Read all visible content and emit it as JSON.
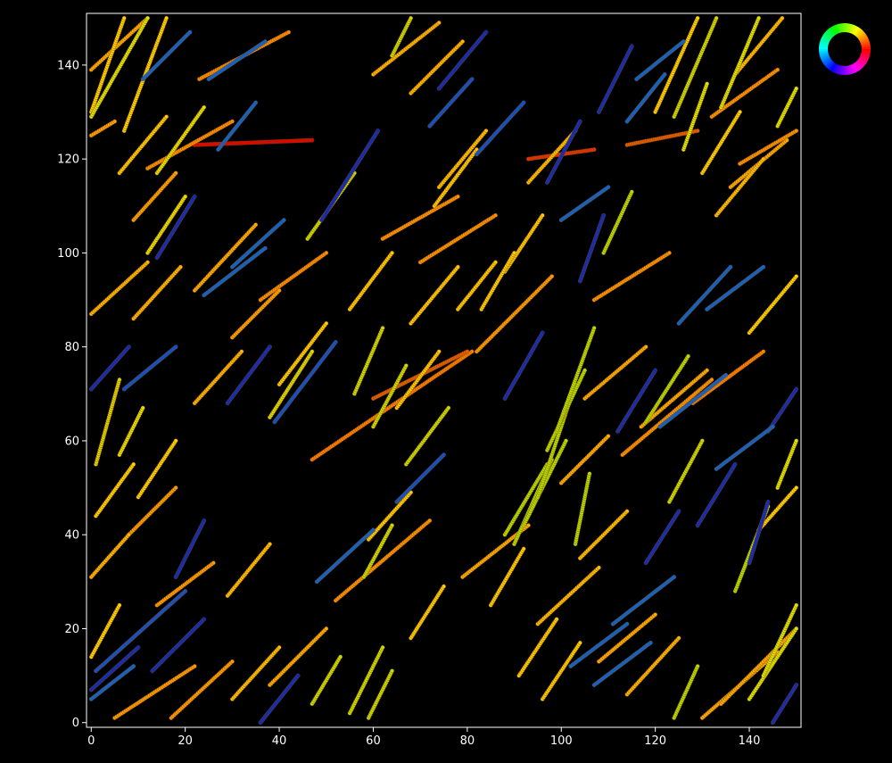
{
  "chart_data": {
    "type": "scatter",
    "title": "",
    "xlabel": "",
    "ylabel": "",
    "xlim": [
      -1,
      151
    ],
    "ylim": [
      -1,
      151
    ],
    "grid": false,
    "background": "#000000",
    "axes_color": "#ffffff",
    "x_ticks": [
      {
        "value": 0,
        "label": "0"
      },
      {
        "value": 20,
        "label": "20"
      },
      {
        "value": 40,
        "label": "40"
      },
      {
        "value": 60,
        "label": "60"
      },
      {
        "value": 80,
        "label": "80"
      },
      {
        "value": 100,
        "label": "100"
      },
      {
        "value": 120,
        "label": "120"
      },
      {
        "value": 140,
        "label": "140"
      }
    ],
    "y_ticks": [
      {
        "value": 0,
        "label": "0"
      },
      {
        "value": 20,
        "label": "20"
      },
      {
        "value": 40,
        "label": "40"
      },
      {
        "value": 60,
        "label": "60"
      },
      {
        "value": 80,
        "label": "80"
      },
      {
        "value": 100,
        "label": "100"
      },
      {
        "value": 120,
        "label": "120"
      },
      {
        "value": 140,
        "label": "140"
      }
    ],
    "legend": {
      "kind": "color-wheel",
      "placement": "top-right outside plot"
    },
    "color_encoding": "orientation angle of each track (hue wheel)",
    "tracks": [
      {
        "x0": 22,
        "y0": 123,
        "x1": 47,
        "y1": 124,
        "color": "#e60000"
      },
      {
        "x0": 93,
        "y0": 120,
        "x1": 107,
        "y1": 122,
        "color": "#e63000"
      },
      {
        "x0": 114,
        "y0": 123,
        "x1": 129,
        "y1": 126,
        "color": "#e65a00"
      },
      {
        "x0": 47,
        "y0": 56,
        "x1": 81,
        "y1": 79,
        "color": "#ff7a00"
      },
      {
        "x0": 60,
        "y0": 69,
        "x1": 80,
        "y1": 79,
        "color": "#e65a00"
      },
      {
        "x0": 12,
        "y0": 118,
        "x1": 30,
        "y1": 128,
        "color": "#ff8c00"
      },
      {
        "x0": 23,
        "y0": 137,
        "x1": 42,
        "y1": 147,
        "color": "#ff8c00"
      },
      {
        "x0": 36,
        "y0": 90,
        "x1": 50,
        "y1": 100,
        "color": "#ff8c00"
      },
      {
        "x0": 62,
        "y0": 103,
        "x1": 78,
        "y1": 112,
        "color": "#ff9000"
      },
      {
        "x0": 70,
        "y0": 98,
        "x1": 86,
        "y1": 108,
        "color": "#ff9000"
      },
      {
        "x0": 107,
        "y0": 90,
        "x1": 123,
        "y1": 100,
        "color": "#ff9000"
      },
      {
        "x0": 113,
        "y0": 57,
        "x1": 132,
        "y1": 73,
        "color": "#ff9000"
      },
      {
        "x0": 128,
        "y0": 68,
        "x1": 143,
        "y1": 79,
        "color": "#ff8000"
      },
      {
        "x0": 132,
        "y0": 129,
        "x1": 146,
        "y1": 139,
        "color": "#ff9000"
      },
      {
        "x0": 138,
        "y0": 119,
        "x1": 150,
        "y1": 126,
        "color": "#ff9000"
      },
      {
        "x0": 52,
        "y0": 26,
        "x1": 72,
        "y1": 43,
        "color": "#ff9000"
      },
      {
        "x0": 82,
        "y0": 79,
        "x1": 98,
        "y1": 95,
        "color": "#ff9a00"
      },
      {
        "x0": 14,
        "y0": 25,
        "x1": 26,
        "y1": 34,
        "color": "#ff9a00"
      },
      {
        "x0": 8,
        "y0": 40,
        "x1": 18,
        "y1": 50,
        "color": "#ff9a00"
      },
      {
        "x0": 5,
        "y0": 1,
        "x1": 22,
        "y1": 12,
        "color": "#ff9a00"
      },
      {
        "x0": 17,
        "y0": 1,
        "x1": 30,
        "y1": 13,
        "color": "#ff9a00"
      },
      {
        "x0": 30,
        "y0": 82,
        "x1": 40,
        "y1": 92,
        "color": "#ffa000"
      },
      {
        "x0": 9,
        "y0": 107,
        "x1": 18,
        "y1": 117,
        "color": "#ffa000"
      },
      {
        "x0": 0,
        "y0": 125,
        "x1": 5,
        "y1": 128,
        "color": "#ffa000"
      },
      {
        "x0": 0,
        "y0": 139,
        "x1": 12,
        "y1": 150,
        "color": "#ffa800"
      },
      {
        "x0": 22,
        "y0": 92,
        "x1": 35,
        "y1": 106,
        "color": "#ffaa00"
      },
      {
        "x0": 38,
        "y0": 8,
        "x1": 50,
        "y1": 20,
        "color": "#ffaa00"
      },
      {
        "x0": 79,
        "y0": 31,
        "x1": 93,
        "y1": 42,
        "color": "#ffaa00"
      },
      {
        "x0": 105,
        "y0": 69,
        "x1": 118,
        "y1": 80,
        "color": "#ffaa00"
      },
      {
        "x0": 117,
        "y0": 63,
        "x1": 131,
        "y1": 75,
        "color": "#ffaa00"
      },
      {
        "x0": 136,
        "y0": 114,
        "x1": 148,
        "y1": 124,
        "color": "#ffaa00"
      },
      {
        "x0": 108,
        "y0": 13,
        "x1": 120,
        "y1": 23,
        "color": "#ffaa00"
      },
      {
        "x0": 100,
        "y0": 51,
        "x1": 110,
        "y1": 61,
        "color": "#ffaa00"
      },
      {
        "x0": 130,
        "y0": 1,
        "x1": 146,
        "y1": 15,
        "color": "#ffaa00"
      },
      {
        "x0": 134,
        "y0": 4,
        "x1": 150,
        "y1": 20,
        "color": "#ffaa00"
      },
      {
        "x0": 0,
        "y0": 31,
        "x1": 8,
        "y1": 40,
        "color": "#ffb400"
      },
      {
        "x0": 0,
        "y0": 87,
        "x1": 12,
        "y1": 98,
        "color": "#ffb400"
      },
      {
        "x0": 9,
        "y0": 86,
        "x1": 19,
        "y1": 97,
        "color": "#ffb400"
      },
      {
        "x0": 22,
        "y0": 68,
        "x1": 32,
        "y1": 79,
        "color": "#ffb400"
      },
      {
        "x0": 68,
        "y0": 134,
        "x1": 79,
        "y1": 145,
        "color": "#ffb400"
      },
      {
        "x0": 60,
        "y0": 138,
        "x1": 74,
        "y1": 149,
        "color": "#ffb400"
      },
      {
        "x0": 114,
        "y0": 6,
        "x1": 125,
        "y1": 18,
        "color": "#ffb400"
      },
      {
        "x0": 95,
        "y0": 21,
        "x1": 108,
        "y1": 33,
        "color": "#ffbb00"
      },
      {
        "x0": 29,
        "y0": 27,
        "x1": 38,
        "y1": 38,
        "color": "#ffbe00"
      },
      {
        "x0": 30,
        "y0": 5,
        "x1": 40,
        "y1": 16,
        "color": "#ffbe00"
      },
      {
        "x0": 74,
        "y0": 114,
        "x1": 84,
        "y1": 126,
        "color": "#ffbe00"
      },
      {
        "x0": 93,
        "y0": 115,
        "x1": 103,
        "y1": 126,
        "color": "#ffbe00"
      },
      {
        "x0": 104,
        "y0": 35,
        "x1": 114,
        "y1": 45,
        "color": "#ffbe00"
      },
      {
        "x0": 133,
        "y0": 108,
        "x1": 143,
        "y1": 120,
        "color": "#ffbe00"
      },
      {
        "x0": 137,
        "y0": 138,
        "x1": 147,
        "y1": 150,
        "color": "#ffbe00"
      },
      {
        "x0": 0,
        "y0": 130,
        "x1": 7,
        "y1": 150,
        "color": "#ffd000"
      },
      {
        "x0": 6,
        "y0": 117,
        "x1": 16,
        "y1": 129,
        "color": "#ffc800"
      },
      {
        "x0": 55,
        "y0": 88,
        "x1": 64,
        "y1": 100,
        "color": "#ffc800"
      },
      {
        "x0": 68,
        "y0": 85,
        "x1": 78,
        "y1": 97,
        "color": "#ffc800"
      },
      {
        "x0": 73,
        "y0": 110,
        "x1": 82,
        "y1": 122,
        "color": "#ffc800"
      },
      {
        "x0": 78,
        "y0": 88,
        "x1": 86,
        "y1": 98,
        "color": "#ffc800"
      },
      {
        "x0": 88,
        "y0": 96,
        "x1": 96,
        "y1": 108,
        "color": "#ffc800"
      },
      {
        "x0": 65,
        "y0": 67,
        "x1": 74,
        "y1": 79,
        "color": "#ffc800"
      },
      {
        "x0": 83,
        "y0": 88,
        "x1": 90,
        "y1": 100,
        "color": "#ffcc00"
      },
      {
        "x0": 40,
        "y0": 72,
        "x1": 50,
        "y1": 85,
        "color": "#ffcc00"
      },
      {
        "x0": 59,
        "y0": 39,
        "x1": 68,
        "y1": 49,
        "color": "#ffcc00"
      },
      {
        "x0": 85,
        "y0": 25,
        "x1": 92,
        "y1": 37,
        "color": "#ffcc00"
      },
      {
        "x0": 91,
        "y0": 10,
        "x1": 99,
        "y1": 22,
        "color": "#ffcc00"
      },
      {
        "x0": 96,
        "y0": 5,
        "x1": 104,
        "y1": 17,
        "color": "#ffcc00"
      },
      {
        "x0": 68,
        "y0": 18,
        "x1": 75,
        "y1": 29,
        "color": "#ffcc00"
      },
      {
        "x0": 10,
        "y0": 48,
        "x1": 18,
        "y1": 60,
        "color": "#ffd200"
      },
      {
        "x0": 1,
        "y0": 44,
        "x1": 9,
        "y1": 55,
        "color": "#ffd200"
      },
      {
        "x0": 0,
        "y0": 14,
        "x1": 6,
        "y1": 25,
        "color": "#ffd200"
      },
      {
        "x0": 7,
        "y0": 126,
        "x1": 16,
        "y1": 150,
        "color": "#ffd200"
      },
      {
        "x0": 120,
        "y0": 130,
        "x1": 129,
        "y1": 150,
        "color": "#ffd200"
      },
      {
        "x0": 130,
        "y0": 117,
        "x1": 138,
        "y1": 130,
        "color": "#ffd200"
      },
      {
        "x0": 140,
        "y0": 83,
        "x1": 150,
        "y1": 95,
        "color": "#ffd200"
      },
      {
        "x0": 142,
        "y0": 41,
        "x1": 150,
        "y1": 50,
        "color": "#ffd200"
      },
      {
        "x0": 1,
        "y0": 55,
        "x1": 6,
        "y1": 73,
        "color": "#dcd200"
      },
      {
        "x0": 6,
        "y0": 57,
        "x1": 11,
        "y1": 67,
        "color": "#e6e000"
      },
      {
        "x0": 12,
        "y0": 100,
        "x1": 20,
        "y1": 112,
        "color": "#e6e000"
      },
      {
        "x0": 14,
        "y0": 117,
        "x1": 24,
        "y1": 131,
        "color": "#e6e000"
      },
      {
        "x0": 46,
        "y0": 103,
        "x1": 56,
        "y1": 117,
        "color": "#c8dc00"
      },
      {
        "x0": 38,
        "y0": 65,
        "x1": 47,
        "y1": 79,
        "color": "#dcdc00"
      },
      {
        "x0": 56,
        "y0": 70,
        "x1": 62,
        "y1": 84,
        "color": "#c8dc00"
      },
      {
        "x0": 60,
        "y0": 63,
        "x1": 67,
        "y1": 76,
        "color": "#c8dc00"
      },
      {
        "x0": 67,
        "y0": 55,
        "x1": 76,
        "y1": 67,
        "color": "#c8dc00"
      },
      {
        "x0": 58,
        "y0": 31,
        "x1": 64,
        "y1": 42,
        "color": "#c8dc00"
      },
      {
        "x0": 55,
        "y0": 2,
        "x1": 62,
        "y1": 16,
        "color": "#c8dc00"
      },
      {
        "x0": 59,
        "y0": 1,
        "x1": 64,
        "y1": 11,
        "color": "#c8dc00"
      },
      {
        "x0": 47,
        "y0": 4,
        "x1": 53,
        "y1": 14,
        "color": "#c8dc00"
      },
      {
        "x0": 64,
        "y0": 142,
        "x1": 68,
        "y1": 150,
        "color": "#c8dc00"
      },
      {
        "x0": 88,
        "y0": 40,
        "x1": 97,
        "y1": 55,
        "color": "#b4dc00"
      },
      {
        "x0": 90,
        "y0": 38,
        "x1": 98,
        "y1": 56,
        "color": "#b4dc00"
      },
      {
        "x0": 92,
        "y0": 42,
        "x1": 101,
        "y1": 60,
        "color": "#b4dc00"
      },
      {
        "x0": 95,
        "y0": 48,
        "x1": 103,
        "y1": 72,
        "color": "#b4dc00"
      },
      {
        "x0": 97,
        "y0": 58,
        "x1": 105,
        "y1": 75,
        "color": "#b4dc00"
      },
      {
        "x0": 99,
        "y0": 62,
        "x1": 107,
        "y1": 84,
        "color": "#b4dc00"
      },
      {
        "x0": 103,
        "y0": 38,
        "x1": 106,
        "y1": 53,
        "color": "#b4dc00"
      },
      {
        "x0": 109,
        "y0": 100,
        "x1": 115,
        "y1": 113,
        "color": "#b4dc00"
      },
      {
        "x0": 118,
        "y0": 64,
        "x1": 127,
        "y1": 78,
        "color": "#b4dc00"
      },
      {
        "x0": 123,
        "y0": 47,
        "x1": 130,
        "y1": 60,
        "color": "#c8dc00"
      },
      {
        "x0": 137,
        "y0": 28,
        "x1": 144,
        "y1": 46,
        "color": "#b4dc00"
      },
      {
        "x0": 124,
        "y0": 1,
        "x1": 129,
        "y1": 12,
        "color": "#b4dc00"
      },
      {
        "x0": 140,
        "y0": 5,
        "x1": 150,
        "y1": 20,
        "color": "#dce600"
      },
      {
        "x0": 143,
        "y0": 10,
        "x1": 150,
        "y1": 25,
        "color": "#dce600"
      },
      {
        "x0": 124,
        "y0": 129,
        "x1": 133,
        "y1": 150,
        "color": "#c8dc00"
      },
      {
        "x0": 134,
        "y0": 131,
        "x1": 142,
        "y1": 150,
        "color": "#dce600"
      },
      {
        "x0": 146,
        "y0": 127,
        "x1": 150,
        "y1": 135,
        "color": "#dce600"
      },
      {
        "x0": 146,
        "y0": 50,
        "x1": 150,
        "y1": 60,
        "color": "#dce600"
      },
      {
        "x0": 0,
        "y0": 129,
        "x1": 12,
        "y1": 150,
        "color": "#dce600"
      },
      {
        "x0": 126,
        "y0": 122,
        "x1": 131,
        "y1": 136,
        "color": "#dce600"
      },
      {
        "x0": 0,
        "y0": 71,
        "x1": 8,
        "y1": 80,
        "color": "#0a28c8"
      },
      {
        "x0": 14,
        "y0": 99,
        "x1": 22,
        "y1": 112,
        "color": "#0a28c8"
      },
      {
        "x0": 29,
        "y0": 68,
        "x1": 38,
        "y1": 80,
        "color": "#0a28c8"
      },
      {
        "x0": 49,
        "y0": 107,
        "x1": 61,
        "y1": 126,
        "color": "#0a28c8"
      },
      {
        "x0": 74,
        "y0": 135,
        "x1": 84,
        "y1": 147,
        "color": "#0a28c8"
      },
      {
        "x0": 97,
        "y0": 115,
        "x1": 104,
        "y1": 128,
        "color": "#0a28c8"
      },
      {
        "x0": 104,
        "y0": 94,
        "x1": 109,
        "y1": 108,
        "color": "#0a28c8"
      },
      {
        "x0": 108,
        "y0": 130,
        "x1": 115,
        "y1": 144,
        "color": "#0a28c8"
      },
      {
        "x0": 88,
        "y0": 69,
        "x1": 96,
        "y1": 83,
        "color": "#0a28c8"
      },
      {
        "x0": 112,
        "y0": 62,
        "x1": 120,
        "y1": 75,
        "color": "#0a28c8"
      },
      {
        "x0": 18,
        "y0": 31,
        "x1": 24,
        "y1": 43,
        "color": "#0a28c8"
      },
      {
        "x0": 36,
        "y0": 0,
        "x1": 44,
        "y1": 10,
        "color": "#0a28c8"
      },
      {
        "x0": 118,
        "y0": 34,
        "x1": 125,
        "y1": 45,
        "color": "#0a28c8"
      },
      {
        "x0": 129,
        "y0": 42,
        "x1": 137,
        "y1": 55,
        "color": "#0a28c8"
      },
      {
        "x0": 140,
        "y0": 34,
        "x1": 144,
        "y1": 47,
        "color": "#0a28c8"
      },
      {
        "x0": 145,
        "y0": 0,
        "x1": 150,
        "y1": 8,
        "color": "#0a28c8"
      },
      {
        "x0": 0,
        "y0": 7,
        "x1": 10,
        "y1": 16,
        "color": "#0a28c8"
      },
      {
        "x0": 13,
        "y0": 11,
        "x1": 24,
        "y1": 22,
        "color": "#0a28c8"
      },
      {
        "x0": 144,
        "y0": 62,
        "x1": 150,
        "y1": 71,
        "color": "#0a28c8"
      },
      {
        "x0": 1,
        "y0": 11,
        "x1": 20,
        "y1": 28,
        "color": "#1050d8"
      },
      {
        "x0": 7,
        "y0": 71,
        "x1": 18,
        "y1": 80,
        "color": "#0a50dc"
      },
      {
        "x0": 11,
        "y0": 137,
        "x1": 21,
        "y1": 147,
        "color": "#0a64dc"
      },
      {
        "x0": 24,
        "y0": 91,
        "x1": 37,
        "y1": 101,
        "color": "#0a64dc"
      },
      {
        "x0": 30,
        "y0": 97,
        "x1": 41,
        "y1": 107,
        "color": "#0a64dc"
      },
      {
        "x0": 25,
        "y0": 137,
        "x1": 37,
        "y1": 145,
        "color": "#0a64dc"
      },
      {
        "x0": 27,
        "y0": 122,
        "x1": 35,
        "y1": 132,
        "color": "#0a64dc"
      },
      {
        "x0": 39,
        "y0": 64,
        "x1": 52,
        "y1": 81,
        "color": "#0a50dc"
      },
      {
        "x0": 48,
        "y0": 30,
        "x1": 60,
        "y1": 41,
        "color": "#0a64dc"
      },
      {
        "x0": 72,
        "y0": 127,
        "x1": 81,
        "y1": 137,
        "color": "#0a50dc"
      },
      {
        "x0": 82,
        "y0": 121,
        "x1": 92,
        "y1": 132,
        "color": "#0a50dc"
      },
      {
        "x0": 100,
        "y0": 107,
        "x1": 110,
        "y1": 114,
        "color": "#0a64dc"
      },
      {
        "x0": 114,
        "y0": 128,
        "x1": 122,
        "y1": 138,
        "color": "#0a64dc"
      },
      {
        "x0": 116,
        "y0": 137,
        "x1": 126,
        "y1": 145,
        "color": "#0a64dc"
      },
      {
        "x0": 121,
        "y0": 63,
        "x1": 135,
        "y1": 74,
        "color": "#0a64dc"
      },
      {
        "x0": 125,
        "y0": 85,
        "x1": 136,
        "y1": 97,
        "color": "#0a64dc"
      },
      {
        "x0": 131,
        "y0": 88,
        "x1": 143,
        "y1": 97,
        "color": "#0a64dc"
      },
      {
        "x0": 133,
        "y0": 54,
        "x1": 145,
        "y1": 63,
        "color": "#0a64dc"
      },
      {
        "x0": 102,
        "y0": 12,
        "x1": 114,
        "y1": 21,
        "color": "#0a64dc"
      },
      {
        "x0": 107,
        "y0": 8,
        "x1": 119,
        "y1": 17,
        "color": "#0a64dc"
      },
      {
        "x0": 111,
        "y0": 21,
        "x1": 124,
        "y1": 31,
        "color": "#0a64dc"
      },
      {
        "x0": 0,
        "y0": 5,
        "x1": 9,
        "y1": 12,
        "color": "#0a64dc"
      },
      {
        "x0": 65,
        "y0": 47,
        "x1": 75,
        "y1": 57,
        "color": "#0a50dc"
      }
    ]
  },
  "legend_wheel": {
    "hue_stops": [
      "#ff0000",
      "#ffff00",
      "#00ff00",
      "#00ffff",
      "#0000ff",
      "#ff00ff",
      "#ff0000"
    ]
  }
}
